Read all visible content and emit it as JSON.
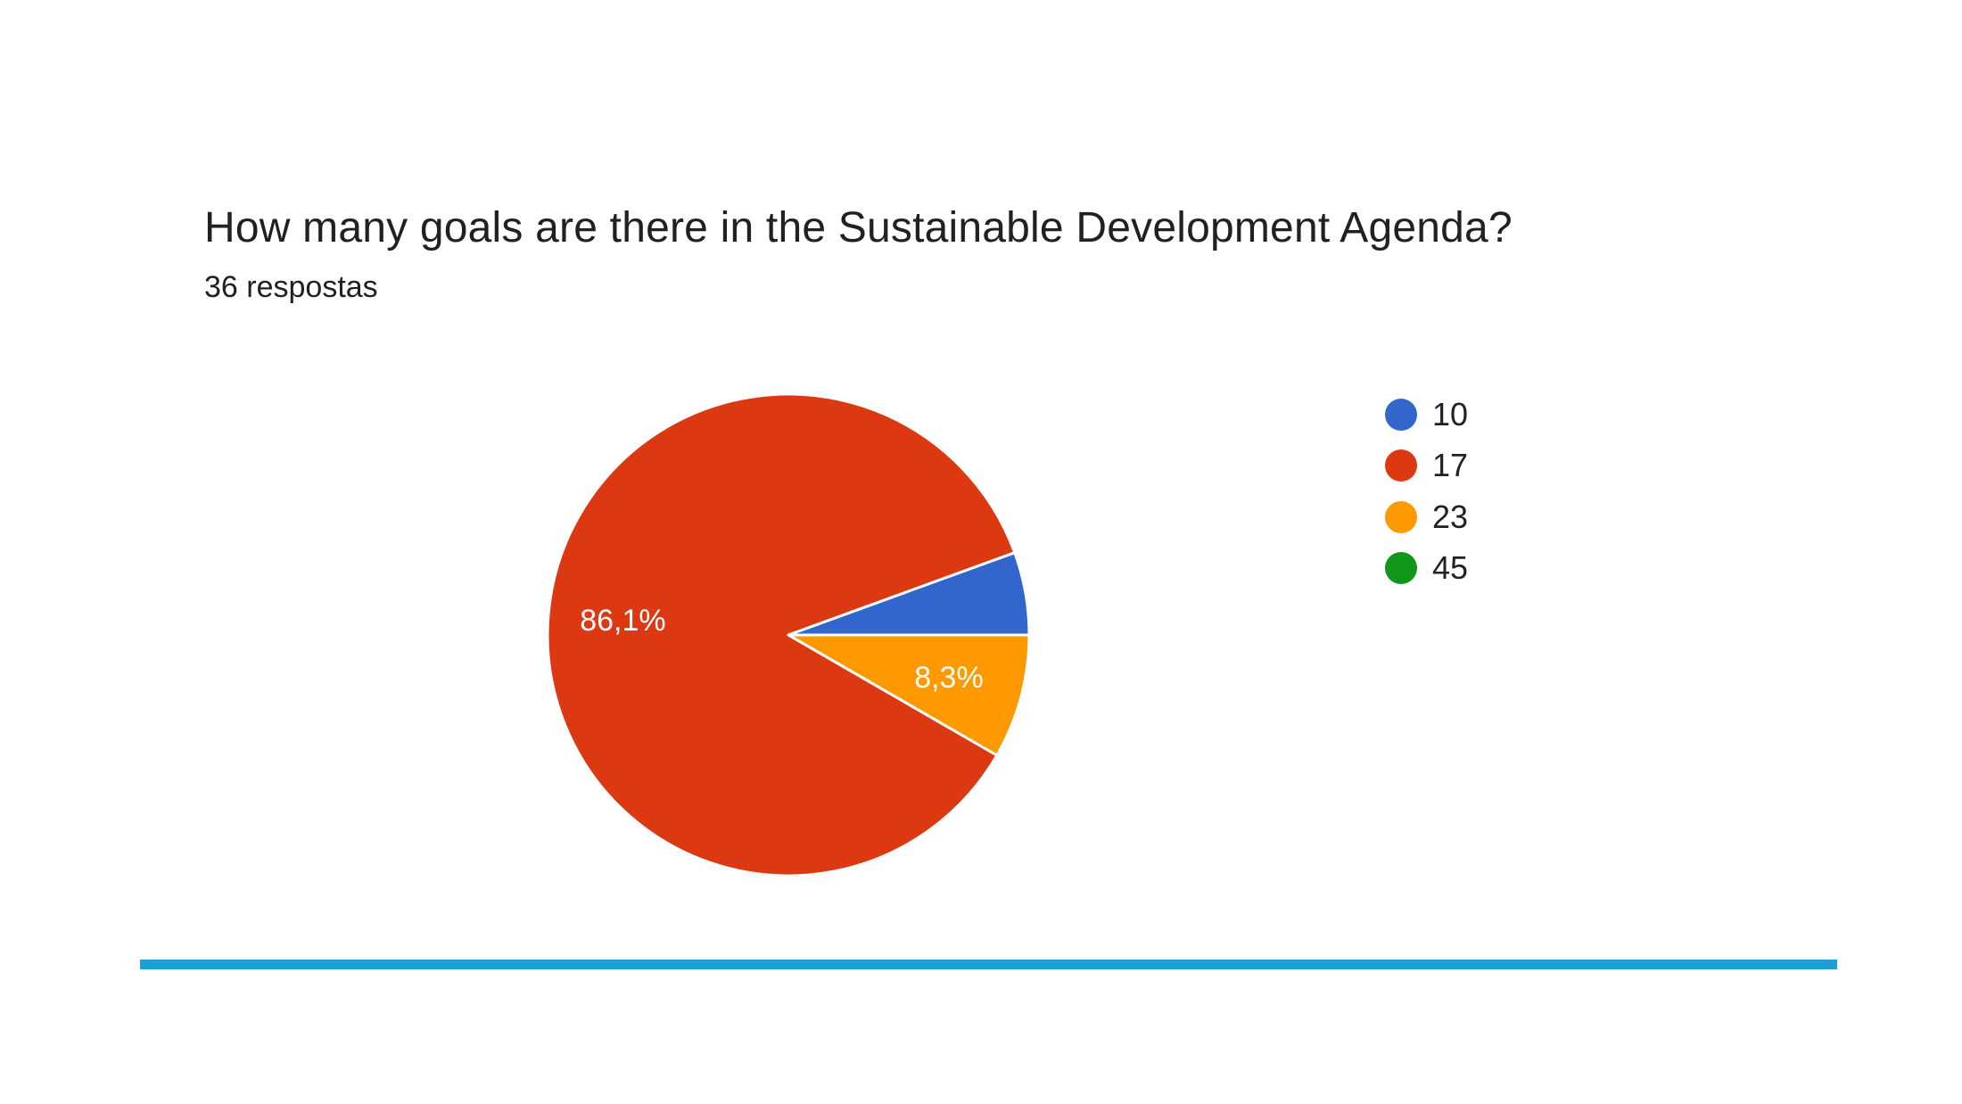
{
  "question": {
    "title": "How many goals are there in the Sustainable Development Agenda?",
    "response_count": "36 respostas"
  },
  "chart_data": {
    "type": "pie",
    "categories": [
      "10",
      "17",
      "23",
      "45"
    ],
    "values": [
      2,
      31,
      3,
      0
    ],
    "percent_labels": [
      "",
      "86,1%",
      "8,3%",
      ""
    ],
    "colors": [
      "#3366cc",
      "#dc3912",
      "#ff9900",
      "#109618"
    ],
    "legend_position": "right"
  },
  "accent_bar_color": "#1ea0d6"
}
